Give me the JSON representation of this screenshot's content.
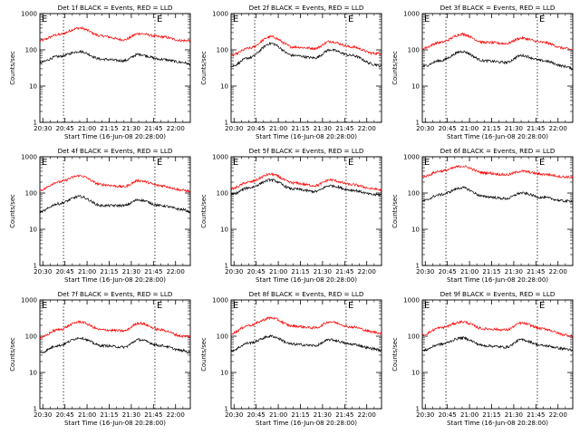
{
  "figure": {
    "panels": [
      {
        "title": "Det 1f BLACK = Events, RED = LLD",
        "xlabel": "Start Time (16-Jun-08 20:28:00)",
        "ylabel": "Counts/sec",
        "e_marks": [
          "E",
          "E"
        ]
      },
      {
        "title": "Det 2f BLACK = Events, RED = LLD",
        "xlabel": "Start Time (16-Jun-08 20:28:00)",
        "ylabel": "Counts/sec",
        "e_marks": [
          "E",
          "E"
        ]
      },
      {
        "title": "Det 3f BLACK = Events, RED = LLD",
        "xlabel": "Start Time (16-Jun-08 20:28:00)",
        "ylabel": "Counts/sec",
        "e_marks": [
          "E",
          "E"
        ]
      },
      {
        "title": "Det 4f BLACK = Events, RED = LLD",
        "xlabel": "Start Time (16-Jun-08 20:28:00)",
        "ylabel": "Counts/sec",
        "e_marks": [
          "E",
          "E"
        ]
      },
      {
        "title": "Det 5f BLACK = Events, RED = LLD",
        "xlabel": "Start Time (16-Jun-08 20:28:00)",
        "ylabel": "Counts/sec",
        "e_marks": [
          "E",
          "E"
        ]
      },
      {
        "title": "Det 6f BLACK = Events, RED = LLD",
        "xlabel": "Start Time (16-Jun-08 20:28:00)",
        "ylabel": "Counts/sec",
        "e_marks": [
          "E",
          "E"
        ]
      },
      {
        "title": "Det 7f BLACK = Events, RED = LLD",
        "xlabel": "Start Time (16-Jun-08 20:28:00)",
        "ylabel": "Counts/sec",
        "e_marks": [
          "E",
          "E"
        ]
      },
      {
        "title": "Det 8f BLACK = Events, RED = LLD",
        "xlabel": "Start Time (16-Jun-08 20:28:00)",
        "ylabel": "Counts/sec",
        "e_marks": [
          "E",
          "E"
        ]
      },
      {
        "title": "Det 9f BLACK = Events, RED = LLD",
        "xlabel": "Start Time (16-Jun-08 20:28:00)",
        "ylabel": "Counts/sec",
        "e_marks": [
          "E",
          "E"
        ]
      }
    ]
  },
  "chart_data": [
    {
      "type": "line",
      "title": "Det 1f BLACK = Events, RED = LLD",
      "xlabel": "Start Time (16-Jun-08 20:28:00)",
      "ylabel": "Counts/sec",
      "y_scale": "log",
      "ylim": [
        1,
        1000
      ],
      "xlim": [
        "20:28",
        "22:10"
      ],
      "x_ticks": [
        "20:30",
        "20:45",
        "21:00",
        "21:15",
        "21:30",
        "21:45",
        "22:00"
      ],
      "y_ticks": [
        "1",
        "10",
        "100",
        "1000"
      ],
      "vlines": [
        "20:44",
        "21:46"
      ],
      "x": [
        "20:28",
        "20:40",
        "20:55",
        "21:10",
        "21:25",
        "21:35",
        "21:50",
        "22:05",
        "22:10"
      ],
      "series": [
        {
          "color": "#ff0000",
          "values": [
            180,
            260,
            400,
            240,
            190,
            280,
            230,
            180,
            180
          ]
        },
        {
          "color": "#000000",
          "values": [
            45,
            65,
            90,
            55,
            50,
            75,
            55,
            45,
            40
          ]
        }
      ],
      "grid": false
    },
    {
      "type": "line",
      "title": "Det 2f BLACK = Events, RED = LLD",
      "xlabel": "Start Time (16-Jun-08 20:28:00)",
      "ylabel": "Counts/sec",
      "y_scale": "log",
      "ylim": [
        1,
        1000
      ],
      "xlim": [
        "20:28",
        "22:10"
      ],
      "x_ticks": [
        "20:30",
        "20:45",
        "21:00",
        "21:15",
        "21:30",
        "21:45",
        "22:00"
      ],
      "y_ticks": [
        "1",
        "10",
        "100",
        "1000"
      ],
      "vlines": [
        "20:44",
        "21:46"
      ],
      "x": [
        "20:28",
        "20:40",
        "20:55",
        "21:10",
        "21:25",
        "21:35",
        "21:50",
        "22:05",
        "22:10"
      ],
      "series": [
        {
          "color": "#ff0000",
          "values": [
            70,
            110,
            230,
            120,
            110,
            170,
            120,
            80,
            80
          ]
        },
        {
          "color": "#000000",
          "values": [
            35,
            60,
            150,
            70,
            60,
            100,
            70,
            40,
            35
          ]
        }
      ],
      "grid": false
    },
    {
      "type": "line",
      "title": "Det 3f BLACK = Events, RED = LLD",
      "xlabel": "Start Time (16-Jun-08 20:28:00)",
      "ylabel": "Counts/sec",
      "y_scale": "log",
      "ylim": [
        1,
        1000
      ],
      "xlim": [
        "20:28",
        "22:10"
      ],
      "x_ticks": [
        "20:30",
        "20:45",
        "21:00",
        "21:15",
        "21:30",
        "21:45",
        "22:00"
      ],
      "y_ticks": [
        "1",
        "10",
        "100",
        "1000"
      ],
      "vlines": [
        "20:44",
        "21:46"
      ],
      "x": [
        "20:28",
        "20:40",
        "20:55",
        "21:10",
        "21:25",
        "21:35",
        "21:50",
        "22:05",
        "22:10"
      ],
      "series": [
        {
          "color": "#ff0000",
          "values": [
            110,
            160,
            270,
            160,
            150,
            210,
            160,
            110,
            100
          ]
        },
        {
          "color": "#000000",
          "values": [
            35,
            50,
            90,
            50,
            45,
            70,
            50,
            35,
            30
          ]
        }
      ],
      "grid": false
    },
    {
      "type": "line",
      "title": "Det 4f BLACK = Events, RED = LLD",
      "xlabel": "Start Time (16-Jun-08 20:28:00)",
      "ylabel": "Counts/sec",
      "y_scale": "log",
      "ylim": [
        1,
        1000
      ],
      "xlim": [
        "20:28",
        "22:10"
      ],
      "x_ticks": [
        "20:30",
        "20:45",
        "21:00",
        "21:15",
        "21:30",
        "21:45",
        "22:00"
      ],
      "y_ticks": [
        "1",
        "10",
        "100",
        "1000"
      ],
      "vlines": [
        "20:44",
        "21:46"
      ],
      "x": [
        "20:28",
        "20:40",
        "20:55",
        "21:10",
        "21:25",
        "21:35",
        "21:50",
        "22:05",
        "22:10"
      ],
      "series": [
        {
          "color": "#ff0000",
          "values": [
            120,
            200,
            300,
            170,
            150,
            220,
            160,
            120,
            110
          ]
        },
        {
          "color": "#000000",
          "values": [
            30,
            50,
            80,
            45,
            45,
            65,
            45,
            35,
            30
          ]
        }
      ],
      "grid": false
    },
    {
      "type": "line",
      "title": "Det 5f BLACK = Events, RED = LLD",
      "xlabel": "Start Time (16-Jun-08 20:28:00)",
      "ylabel": "Counts/sec",
      "y_scale": "log",
      "ylim": [
        1,
        1000
      ],
      "xlim": [
        "20:28",
        "22:10"
      ],
      "x_ticks": [
        "20:30",
        "20:45",
        "21:00",
        "21:15",
        "21:30",
        "21:45",
        "22:00"
      ],
      "y_ticks": [
        "1",
        "10",
        "100",
        "1000"
      ],
      "vlines": [
        "20:44",
        "21:46"
      ],
      "x": [
        "20:28",
        "20:40",
        "20:55",
        "21:10",
        "21:25",
        "21:35",
        "21:50",
        "22:05",
        "22:10"
      ],
      "series": [
        {
          "color": "#ff0000",
          "values": [
            130,
            200,
            330,
            190,
            160,
            230,
            170,
            130,
            120
          ]
        },
        {
          "color": "#000000",
          "values": [
            90,
            140,
            230,
            130,
            110,
            160,
            120,
            90,
            90
          ]
        }
      ],
      "grid": false
    },
    {
      "type": "line",
      "title": "Det 6f BLACK = Events, RED = LLD",
      "xlabel": "Start Time (16-Jun-08 20:28:00)",
      "ylabel": "Counts/sec",
      "y_scale": "log",
      "ylim": [
        1,
        1000
      ],
      "xlim": [
        "20:28",
        "22:10"
      ],
      "x_ticks": [
        "20:30",
        "20:45",
        "21:00",
        "21:15",
        "21:30",
        "21:45",
        "22:00"
      ],
      "y_ticks": [
        "1",
        "10",
        "100",
        "1000"
      ],
      "vlines": [
        "20:44",
        "21:46"
      ],
      "x": [
        "20:28",
        "20:40",
        "20:55",
        "21:10",
        "21:25",
        "21:35",
        "21:50",
        "22:05",
        "22:10"
      ],
      "series": [
        {
          "color": "#ff0000",
          "values": [
            280,
            400,
            550,
            360,
            320,
            400,
            330,
            280,
            270
          ]
        },
        {
          "color": "#000000",
          "values": [
            60,
            90,
            140,
            80,
            70,
            100,
            75,
            60,
            60
          ]
        }
      ],
      "grid": false
    },
    {
      "type": "line",
      "title": "Det 7f BLACK = Events, RED = LLD",
      "xlabel": "Start Time (16-Jun-08 20:28:00)",
      "ylabel": "Counts/sec",
      "y_scale": "log",
      "ylim": [
        1,
        1000
      ],
      "xlim": [
        "20:28",
        "22:10"
      ],
      "x_ticks": [
        "20:30",
        "20:45",
        "21:00",
        "21:15",
        "21:30",
        "21:45",
        "22:00"
      ],
      "y_ticks": [
        "1",
        "10",
        "100",
        "1000"
      ],
      "vlines": [
        "20:44",
        "21:46"
      ],
      "x": [
        "20:28",
        "20:40",
        "20:55",
        "21:10",
        "21:25",
        "21:35",
        "21:50",
        "22:05",
        "22:10"
      ],
      "series": [
        {
          "color": "#ff0000",
          "values": [
            90,
            150,
            250,
            150,
            140,
            230,
            150,
            100,
            100
          ]
        },
        {
          "color": "#000000",
          "values": [
            35,
            55,
            90,
            55,
            50,
            80,
            55,
            40,
            35
          ]
        }
      ],
      "grid": false
    },
    {
      "type": "line",
      "title": "Det 8f BLACK = Events, RED = LLD",
      "xlabel": "Start Time (16-Jun-08 20:28:00)",
      "ylabel": "Counts/sec",
      "y_scale": "log",
      "ylim": [
        1,
        1000
      ],
      "xlim": [
        "20:28",
        "22:10"
      ],
      "x_ticks": [
        "20:30",
        "20:45",
        "21:00",
        "21:15",
        "21:30",
        "21:45",
        "22:00"
      ],
      "y_ticks": [
        "1",
        "10",
        "100",
        "1000"
      ],
      "vlines": [
        "20:44",
        "21:46"
      ],
      "x": [
        "20:28",
        "20:40",
        "20:55",
        "21:10",
        "21:25",
        "21:35",
        "21:50",
        "22:05",
        "22:10"
      ],
      "series": [
        {
          "color": "#ff0000",
          "values": [
            120,
            200,
            320,
            190,
            170,
            250,
            180,
            130,
            120
          ]
        },
        {
          "color": "#000000",
          "values": [
            40,
            65,
            100,
            60,
            55,
            80,
            60,
            45,
            40
          ]
        }
      ],
      "grid": false
    },
    {
      "type": "line",
      "title": "Det 9f BLACK = Events, RED = LLD",
      "xlabel": "Start Time (16-Jun-08 20:28:00)",
      "ylabel": "Counts/sec",
      "y_scale": "log",
      "ylim": [
        1,
        1000
      ],
      "xlim": [
        "20:28",
        "22:10"
      ],
      "x_ticks": [
        "20:30",
        "20:45",
        "21:00",
        "21:15",
        "21:30",
        "21:45",
        "22:00"
      ],
      "y_ticks": [
        "1",
        "10",
        "100",
        "1000"
      ],
      "vlines": [
        "20:44",
        "21:46"
      ],
      "x": [
        "20:28",
        "20:40",
        "20:55",
        "21:10",
        "21:25",
        "21:35",
        "21:50",
        "22:05",
        "22:10"
      ],
      "series": [
        {
          "color": "#ff0000",
          "values": [
            110,
            170,
            250,
            160,
            150,
            230,
            160,
            110,
            100
          ]
        },
        {
          "color": "#000000",
          "values": [
            40,
            60,
            90,
            55,
            50,
            80,
            55,
            45,
            40
          ]
        }
      ],
      "grid": false
    }
  ]
}
